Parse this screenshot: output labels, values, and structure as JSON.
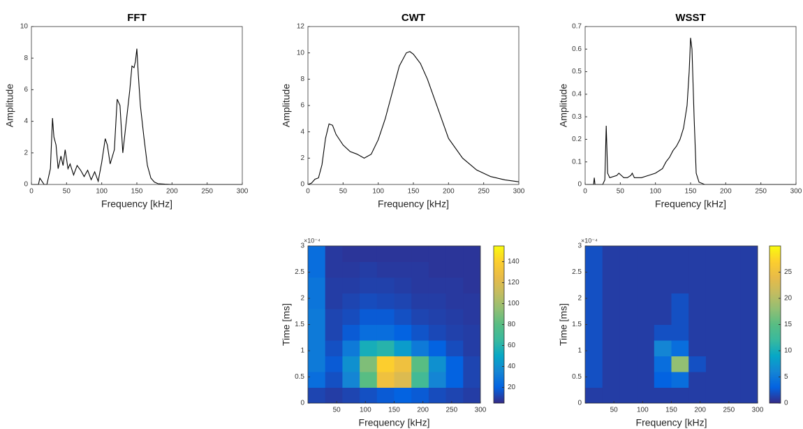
{
  "chart_data": [
    {
      "type": "line",
      "title": "FFT",
      "xlabel": "Frequency [kHz]",
      "ylabel": "Amplitude",
      "xlim": [
        0,
        300
      ],
      "xticks": [
        0,
        50,
        100,
        150,
        200,
        250,
        300
      ],
      "ylim": [
        0,
        10
      ],
      "yticks": [
        0,
        2,
        4,
        6,
        8,
        10
      ],
      "color": "#000000",
      "x": [
        0,
        10,
        12,
        15,
        18,
        22,
        27,
        30,
        32,
        35,
        38,
        42,
        45,
        48,
        52,
        55,
        60,
        65,
        70,
        75,
        80,
        85,
        90,
        95,
        100,
        105,
        108,
        112,
        118,
        122,
        126,
        130,
        135,
        140,
        143,
        146,
        148,
        150,
        152,
        155,
        160,
        165,
        170,
        175,
        180,
        190,
        200,
        250,
        300
      ],
      "values": [
        0,
        0,
        0.4,
        0.2,
        0,
        0,
        1,
        4.2,
        3,
        2.5,
        1,
        1.8,
        1.2,
        2.2,
        1,
        1.3,
        0.6,
        1.2,
        0.9,
        0.5,
        0.9,
        0.3,
        0.8,
        0.2,
        1.4,
        2.9,
        2.5,
        1.3,
        2.2,
        5.4,
        5,
        2,
        4,
        6,
        7.5,
        7.4,
        7.8,
        8.6,
        7,
        5,
        3,
        1.2,
        0.4,
        0.15,
        0.05,
        0.02,
        0,
        0,
        0
      ]
    },
    {
      "type": "line",
      "title": "CWT",
      "xlabel": "Frequency [kHz]",
      "ylabel": "Amplitude",
      "xlim": [
        0,
        300
      ],
      "xticks": [
        0,
        50,
        100,
        150,
        200,
        250,
        300
      ],
      "ylim": [
        0,
        12
      ],
      "yticks": [
        0,
        2,
        4,
        6,
        8,
        10,
        12
      ],
      "color": "#000000",
      "x": [
        0,
        5,
        10,
        15,
        20,
        25,
        30,
        35,
        40,
        50,
        60,
        70,
        80,
        90,
        100,
        110,
        120,
        130,
        140,
        145,
        150,
        160,
        170,
        180,
        190,
        200,
        220,
        240,
        260,
        280,
        300
      ],
      "values": [
        0,
        0.1,
        0.4,
        0.5,
        1.5,
        3.5,
        4.6,
        4.5,
        3.8,
        3,
        2.5,
        2.3,
        2,
        2.3,
        3.4,
        5,
        7,
        9,
        10,
        10.1,
        9.9,
        9.2,
        8,
        6.5,
        5,
        3.5,
        2,
        1.1,
        0.6,
        0.35,
        0.2
      ]
    },
    {
      "type": "line",
      "title": "WSST",
      "xlabel": "Frequency [kHz]",
      "ylabel": "Amplitude",
      "xlim": [
        0,
        300
      ],
      "xticks": [
        0,
        50,
        100,
        150,
        200,
        250,
        300
      ],
      "ylim": [
        0,
        0.7
      ],
      "yticks": [
        0,
        0.1,
        0.2,
        0.3,
        0.4,
        0.5,
        0.6,
        0.7
      ],
      "color": "#000000",
      "x": [
        0,
        12,
        13,
        14,
        25,
        28,
        30,
        32,
        35,
        45,
        48,
        55,
        60,
        65,
        67,
        70,
        80,
        90,
        100,
        110,
        115,
        120,
        125,
        130,
        135,
        140,
        145,
        148,
        150,
        152,
        155,
        158,
        162,
        170,
        200,
        300
      ],
      "values": [
        0,
        0,
        0.03,
        0,
        0,
        0.02,
        0.26,
        0.05,
        0.03,
        0.04,
        0.05,
        0.03,
        0.03,
        0.04,
        0.05,
        0.03,
        0.03,
        0.04,
        0.05,
        0.07,
        0.1,
        0.12,
        0.15,
        0.17,
        0.2,
        0.25,
        0.35,
        0.5,
        0.65,
        0.6,
        0.3,
        0.05,
        0.01,
        0,
        0,
        0
      ]
    },
    {
      "type": "heatmap",
      "xlabel": "Frequency [kHz]",
      "ylabel": "Time [ms]",
      "y_multiplier_label": "×10⁻⁴",
      "xlim": [
        0,
        300
      ],
      "xticks": [
        50,
        100,
        150,
        200,
        250,
        300
      ],
      "ylim": [
        0,
        3
      ],
      "yticks": [
        0,
        0.5,
        1,
        1.5,
        2,
        2.5,
        3
      ],
      "colormap": "parula",
      "clim": [
        5,
        155
      ],
      "cticks": [
        20,
        40,
        60,
        80,
        100,
        120,
        140
      ],
      "x": [
        15,
        45,
        75,
        105,
        135,
        165,
        195,
        225,
        255,
        285
      ],
      "y": [
        0.15,
        0.45,
        0.75,
        1.05,
        1.35,
        1.65,
        1.95,
        2.25,
        2.55,
        2.85
      ],
      "z": [
        [
          12,
          10,
          12,
          15,
          18,
          20,
          18,
          14,
          12,
          10
        ],
        [
          25,
          15,
          35,
          80,
          130,
          120,
          70,
          35,
          20,
          12
        ],
        [
          30,
          18,
          40,
          90,
          140,
          130,
          80,
          40,
          20,
          12
        ],
        [
          30,
          15,
          30,
          55,
          60,
          45,
          30,
          20,
          14,
          10
        ],
        [
          30,
          12,
          18,
          25,
          25,
          20,
          16,
          13,
          11,
          10
        ],
        [
          30,
          12,
          14,
          18,
          18,
          15,
          12,
          11,
          10,
          9
        ],
        [
          28,
          10,
          12,
          14,
          13,
          12,
          10,
          10,
          9,
          9
        ],
        [
          28,
          10,
          10,
          11,
          11,
          10,
          9,
          9,
          9,
          8
        ],
        [
          25,
          9,
          9,
          10,
          9,
          9,
          9,
          8,
          8,
          8
        ],
        [
          25,
          9,
          8,
          8,
          8,
          8,
          8,
          8,
          8,
          8
        ]
      ]
    },
    {
      "type": "heatmap",
      "xlabel": "Frequency [kHz]",
      "ylabel": "Time [ms]",
      "y_multiplier_label": "×10⁻⁴",
      "xlim": [
        0,
        300
      ],
      "xticks": [
        50,
        100,
        150,
        200,
        250,
        300
      ],
      "ylim": [
        0,
        3
      ],
      "yticks": [
        0,
        0.5,
        1,
        1.5,
        2,
        2.5,
        3
      ],
      "colormap": "parula",
      "clim": [
        0,
        30
      ],
      "cticks": [
        0,
        5,
        10,
        15,
        20,
        25
      ],
      "x": [
        15,
        45,
        75,
        105,
        135,
        165,
        195,
        225,
        255,
        285
      ],
      "y": [
        0.15,
        0.45,
        0.75,
        1.05,
        1.35,
        1.65,
        1.95,
        2.25,
        2.55,
        2.85
      ],
      "z": [
        [
          1,
          1,
          1,
          1,
          1,
          1,
          1,
          1,
          1,
          1
        ],
        [
          2,
          1,
          1,
          1,
          3,
          4,
          1,
          1,
          1,
          1
        ],
        [
          2,
          1,
          1,
          1,
          4,
          18,
          2,
          1,
          1,
          1
        ],
        [
          2,
          1,
          1,
          1,
          6,
          4,
          1,
          1,
          1,
          1
        ],
        [
          2,
          1,
          1,
          1,
          2,
          2,
          1,
          1,
          1,
          1
        ],
        [
          2,
          1,
          1,
          1,
          1,
          2,
          1,
          1,
          1,
          1
        ],
        [
          2,
          1,
          1,
          1,
          1,
          2,
          1,
          1,
          1,
          1
        ],
        [
          2,
          1,
          1,
          1,
          1,
          1,
          1,
          1,
          1,
          1
        ],
        [
          2,
          1,
          1,
          1,
          1,
          1,
          1,
          1,
          1,
          1
        ],
        [
          2,
          1,
          1,
          1,
          1,
          1,
          1,
          1,
          1,
          1
        ]
      ]
    }
  ]
}
